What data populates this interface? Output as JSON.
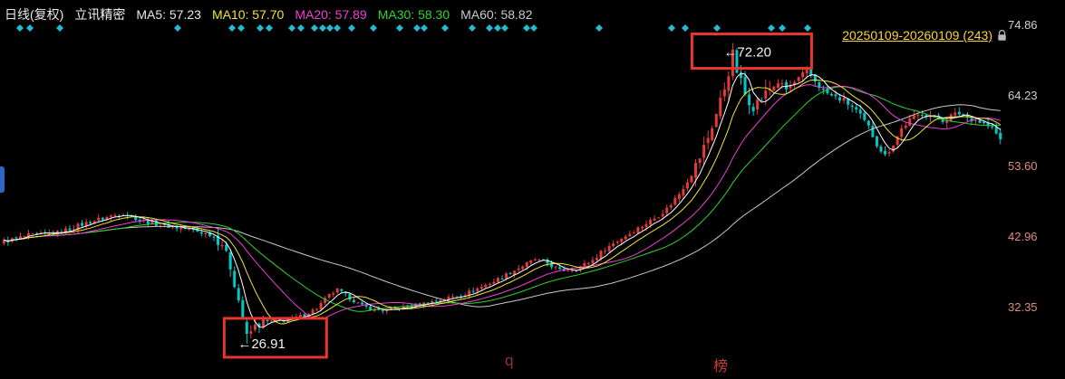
{
  "header": {
    "period_label": "日线(复权)",
    "stock_name": "立讯精密"
  },
  "range_selector": {
    "label": "20250109-20260109 (243)",
    "color": "#ffd23f"
  },
  "y_axis": {
    "tick_colors": [
      "#cfcfcf",
      "#cfcfcf",
      "#df8b80",
      "#df8b80",
      "#df8b80"
    ]
  },
  "watermarks": [
    {
      "text": "q",
      "color": "#93362e"
    },
    {
      "text": "榜",
      "color": "#cc3b35"
    }
  ],
  "colors": {
    "background": "#000000",
    "header_text": "#e8e8e8",
    "annotation_text": "#f2f2f2",
    "lock_icon": "#b8b8b8"
  },
  "chart_data": {
    "type": "candlestick",
    "title": "立讯精密 日线(复权)",
    "bars": 243,
    "date_range": "20250109-20260109",
    "y_ticks": [
      74.86,
      64.23,
      53.6,
      42.96,
      32.35
    ],
    "ylim": [
      26,
      76
    ],
    "grid": false,
    "up_color": "#e23b3b",
    "down_color": "#00c8c8",
    "marker_color": "#23bdd3",
    "annotation_box_color": "#e8352e",
    "ma_lines": [
      {
        "name": "MA5",
        "window": 5,
        "value": 57.23,
        "color": "#ffffff"
      },
      {
        "name": "MA10",
        "window": 10,
        "value": 57.7,
        "color": "#f2e437"
      },
      {
        "name": "MA20",
        "window": 20,
        "value": 57.89,
        "color": "#f23fd3"
      },
      {
        "name": "MA30",
        "window": 30,
        "value": 58.3,
        "color": "#2fd42f"
      },
      {
        "name": "MA60",
        "window": 60,
        "value": 58.82,
        "color": "#c9c9c9"
      }
    ],
    "annotations": [
      {
        "text": "←72.20",
        "value": 72.2,
        "bar": 177,
        "kind": "high"
      },
      {
        "text": "←26.91",
        "value": 26.91,
        "bar": 59,
        "kind": "low"
      }
    ],
    "price_anchors": [
      [
        0,
        42.3
      ],
      [
        6,
        43.2
      ],
      [
        13,
        43.6
      ],
      [
        21,
        45.3
      ],
      [
        27,
        46.3
      ],
      [
        29,
        46.6
      ],
      [
        33,
        45.6
      ],
      [
        38,
        44.8
      ],
      [
        44,
        44.2
      ],
      [
        50,
        43.4
      ],
      [
        53,
        42.0
      ],
      [
        55,
        38.5
      ],
      [
        57,
        33.5
      ],
      [
        59,
        28.0
      ],
      [
        61,
        29.5
      ],
      [
        63,
        30.2
      ],
      [
        68,
        30.4
      ],
      [
        73,
        31.2
      ],
      [
        76,
        32.3
      ],
      [
        79,
        34.2
      ],
      [
        81,
        35.0
      ],
      [
        84,
        33.8
      ],
      [
        87,
        32.6
      ],
      [
        90,
        32.0
      ],
      [
        93,
        31.9
      ],
      [
        99,
        32.6
      ],
      [
        105,
        33.4
      ],
      [
        112,
        34.4
      ],
      [
        119,
        36.3
      ],
      [
        125,
        38.3
      ],
      [
        129,
        39.6
      ],
      [
        132,
        39.0
      ],
      [
        135,
        37.9
      ],
      [
        139,
        38.2
      ],
      [
        143,
        39.5
      ],
      [
        146,
        41.2
      ],
      [
        150,
        42.8
      ],
      [
        154,
        44.3
      ],
      [
        158,
        45.8
      ],
      [
        161,
        47.2
      ],
      [
        164,
        49.5
      ],
      [
        167,
        52.5
      ],
      [
        169,
        55.0
      ],
      [
        171,
        58.0
      ],
      [
        173,
        61.5
      ],
      [
        175,
        65.5
      ],
      [
        177,
        70.5
      ],
      [
        178,
        68.0
      ],
      [
        180,
        64.5
      ],
      [
        182,
        62.8
      ],
      [
        184,
        63.8
      ],
      [
        186,
        65.2
      ],
      [
        188,
        66.3
      ],
      [
        190,
        65.2
      ],
      [
        193,
        66.8
      ],
      [
        195,
        68.0
      ],
      [
        197,
        66.5
      ],
      [
        199,
        65.0
      ],
      [
        201,
        64.2
      ],
      [
        204,
        63.6
      ],
      [
        207,
        62.0
      ],
      [
        210,
        59.5
      ],
      [
        212,
        57.0
      ],
      [
        214,
        55.2
      ],
      [
        216,
        57.0
      ],
      [
        218,
        59.3
      ],
      [
        220,
        60.6
      ],
      [
        223,
        61.6
      ],
      [
        226,
        61.0
      ],
      [
        228,
        60.6
      ],
      [
        230,
        61.2
      ],
      [
        232,
        61.6
      ],
      [
        234,
        61.0
      ],
      [
        236,
        60.6
      ],
      [
        238,
        60.0
      ],
      [
        240,
        59.4
      ],
      [
        242,
        57.6
      ]
    ],
    "event_marker_xs": [
      22,
      33,
      66,
      196,
      256,
      266,
      287,
      297,
      322,
      332,
      347,
      356,
      364,
      372,
      388,
      412,
      441,
      460,
      468,
      491,
      521,
      540,
      549,
      557,
      581,
      589,
      661,
      741,
      756,
      791,
      851,
      863,
      891
    ]
  }
}
